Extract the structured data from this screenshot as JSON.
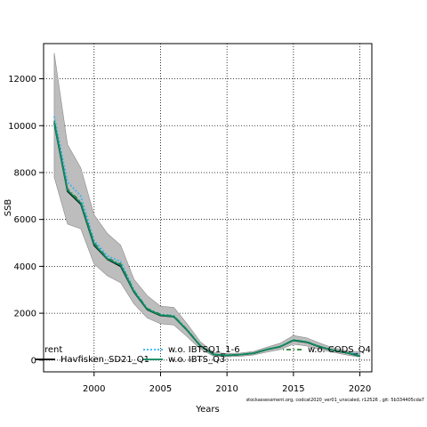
{
  "chart_data": {
    "type": "line",
    "xlabel": "Years",
    "ylabel": "SSB",
    "xlim": [
      1996.2,
      2020.9
    ],
    "ylim": [
      -500,
      13500
    ],
    "x_ticks": [
      2000,
      2005,
      2010,
      2015,
      2020
    ],
    "y_ticks": [
      0,
      2000,
      4000,
      6000,
      8000,
      10000,
      12000
    ],
    "grid": "dotted",
    "years": [
      1997,
      1998,
      1999,
      2000,
      2001,
      2002,
      2003,
      2004,
      2005,
      2006,
      2007,
      2008,
      2009,
      2010,
      2011,
      2012,
      2013,
      2014,
      2015,
      2016,
      2017,
      2018,
      2019,
      2020
    ],
    "band": {
      "upper": [
        13100,
        9200,
        8200,
        6200,
        5400,
        4900,
        3450,
        2750,
        2300,
        2250,
        1550,
        780,
        330,
        280,
        300,
        370,
        550,
        720,
        1050,
        950,
        720,
        520,
        400,
        350
      ],
      "lower": [
        7800,
        5800,
        5600,
        4100,
        3600,
        3300,
        2400,
        1800,
        1550,
        1500,
        1000,
        470,
        160,
        140,
        160,
        220,
        340,
        450,
        680,
        600,
        450,
        330,
        220,
        130
      ]
    },
    "series": [
      {
        "name": "w.o. IBTSQ1_1-6",
        "color": "#29b6f6",
        "style": "dotted",
        "values": [
          10400,
          7600,
          7000,
          5100,
          4450,
          4200,
          3000,
          2200,
          1950,
          1900,
          1300,
          620,
          250,
          210,
          240,
          300,
          460,
          580,
          870,
          780,
          580,
          430,
          320,
          260
        ]
      },
      {
        "name": "w.o. CODS_Q4",
        "color": "#2e7d32",
        "style": "dotdash",
        "values": [
          10200,
          7300,
          6750,
          5000,
          4350,
          4100,
          2950,
          2200,
          1950,
          1880,
          1300,
          620,
          240,
          210,
          240,
          300,
          460,
          580,
          860,
          780,
          580,
          420,
          320,
          180
        ]
      },
      {
        "name": "Havfisken_SD21_Q1",
        "color": "#000000",
        "style": "solid",
        "values": [
          10100,
          7200,
          6650,
          4900,
          4300,
          4000,
          2900,
          2150,
          1900,
          1850,
          1270,
          600,
          230,
          200,
          230,
          290,
          450,
          570,
          840,
          760,
          560,
          410,
          310,
          170
        ]
      },
      {
        "name": "w.o. IBTS_Q3",
        "color": "#0e8a5f",
        "style": "solid",
        "values": [
          10150,
          7250,
          6700,
          4950,
          4320,
          4050,
          2920,
          2170,
          1920,
          1860,
          1280,
          610,
          235,
          205,
          235,
          295,
          455,
          575,
          850,
          770,
          570,
          415,
          315,
          175
        ]
      }
    ],
    "legend": {
      "placement": "bottom",
      "entries": [
        {
          "label": "rent",
          "color": "#000000",
          "style": "none",
          "row": 0,
          "col": 0
        },
        {
          "label": "Havfisken_SD21_Q1",
          "color": "#000000",
          "style": "solid",
          "row": 1,
          "col": 0
        },
        {
          "label": "w.o. IBTSQ1_1-6",
          "color": "#29b6f6",
          "style": "dotted",
          "row": 0,
          "col": 1
        },
        {
          "label": "w.o. IBTS_Q3",
          "color": "#0e8a5f",
          "style": "solid",
          "row": 1,
          "col": 1
        },
        {
          "label": "w.o. CODS_Q4",
          "color": "#2e7d32",
          "style": "dotdash",
          "row": 0,
          "col": 2
        }
      ]
    },
    "band_color": "#bdbdbd",
    "footer": "stockassessment.org, codcat2020_ver01_unscaled, r12526 , git: 5b334405cda7"
  }
}
